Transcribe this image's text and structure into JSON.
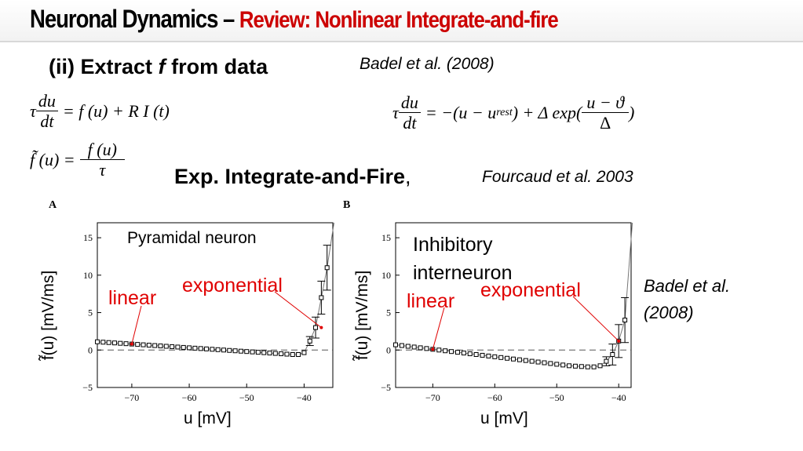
{
  "title": {
    "main": "Neuronal Dynamics –",
    "sub": "Review: Nonlinear Integrate-and-fire"
  },
  "subtitle": {
    "pre": "(ii) Extract",
    "var": "f",
    "post": "from data"
  },
  "citation_top": "Badel et al. (2008)",
  "equations": {
    "eq1_left": "τ",
    "eq1_num": "du",
    "eq1_den": "dt",
    "eq1_rhs": "= f (u) + R I (t)",
    "eq2_left": "f̃ (u) =",
    "eq2_num": "f (u)",
    "eq2_den": "τ",
    "eq3_left": "τ",
    "eq3_num": "du",
    "eq3_den": "dt",
    "eq3_mid": "= −(u − u",
    "eq3_sub": "rest",
    "eq3_mid2": ") + Δ exp(",
    "eq3_fnum": "u − ϑ",
    "eq3_fden": "Δ",
    "eq3_end": ")"
  },
  "eif_label": "Exp. Integrate-and-Fire",
  "eif_comma": ",",
  "eif_cite": "Fourcaud et al. 2003",
  "citation_right": [
    "Badel et al.",
    "(2008)"
  ],
  "colors": {
    "title_accent": "#cc0000",
    "annotation": "#e00000"
  },
  "chart_data": [
    {
      "type": "scatter",
      "panel": "A",
      "title": "Pyramidal neuron",
      "xlabel": "u [mV]",
      "ylabel": "f̃(u) [mV/ms]",
      "xlim": [
        -76,
        -35
      ],
      "ylim": [
        -5,
        17
      ],
      "xticks": [
        -70,
        -60,
        -50,
        -40
      ],
      "yticks": [
        -5,
        0,
        5,
        10,
        15
      ],
      "x": [
        -76,
        -75,
        -74,
        -73,
        -72,
        -71,
        -70,
        -69,
        -68,
        -67,
        -66,
        -65,
        -64,
        -63,
        -62,
        -61,
        -60,
        -59,
        -58,
        -57,
        -56,
        -55,
        -54,
        -53,
        -52,
        -51,
        -50,
        -49,
        -48,
        -47,
        -46,
        -45,
        -44,
        -43,
        -42,
        -41,
        -40,
        -39,
        -38,
        -37,
        -36
      ],
      "y": [
        1.1,
        1.05,
        1.0,
        0.95,
        0.9,
        0.85,
        0.8,
        0.75,
        0.7,
        0.65,
        0.6,
        0.55,
        0.5,
        0.45,
        0.4,
        0.35,
        0.3,
        0.25,
        0.2,
        0.15,
        0.1,
        0.05,
        0.0,
        -0.05,
        -0.1,
        -0.15,
        -0.2,
        -0.25,
        -0.3,
        -0.35,
        -0.4,
        -0.45,
        -0.5,
        -0.55,
        -0.6,
        -0.6,
        -0.35,
        1.2,
        3.0,
        7.0,
        11.0
      ],
      "annotations": [
        "linear",
        "exponential"
      ]
    },
    {
      "type": "scatter",
      "panel": "B",
      "title": "Inhibitory interneuron",
      "xlabel": "u [mV]",
      "ylabel": "f̃(u) [mV/ms]",
      "xlim": [
        -76,
        -38
      ],
      "ylim": [
        -5,
        17
      ],
      "xticks": [
        -70,
        -60,
        -50,
        -40
      ],
      "yticks": [
        -5,
        0,
        5,
        10,
        15
      ],
      "x": [
        -76,
        -75,
        -74,
        -73,
        -72,
        -71,
        -70,
        -69,
        -68,
        -67,
        -66,
        -65,
        -64,
        -63,
        -62,
        -61,
        -60,
        -59,
        -58,
        -57,
        -56,
        -55,
        -54,
        -53,
        -52,
        -51,
        -50,
        -49,
        -48,
        -47,
        -46,
        -45,
        -44,
        -43,
        -42,
        -41,
        -40,
        -39
      ],
      "y": [
        0.7,
        0.6,
        0.5,
        0.4,
        0.3,
        0.2,
        0.1,
        0.0,
        -0.1,
        -0.2,
        -0.3,
        -0.4,
        -0.5,
        -0.6,
        -0.7,
        -0.8,
        -0.9,
        -1.0,
        -1.1,
        -1.2,
        -1.3,
        -1.4,
        -1.5,
        -1.6,
        -1.7,
        -1.8,
        -1.9,
        -2.0,
        -2.1,
        -2.15,
        -2.2,
        -2.25,
        -2.25,
        -2.1,
        -1.5,
        -0.6,
        1.2,
        4.0
      ],
      "annotations": [
        "linear",
        "exponential"
      ]
    }
  ]
}
